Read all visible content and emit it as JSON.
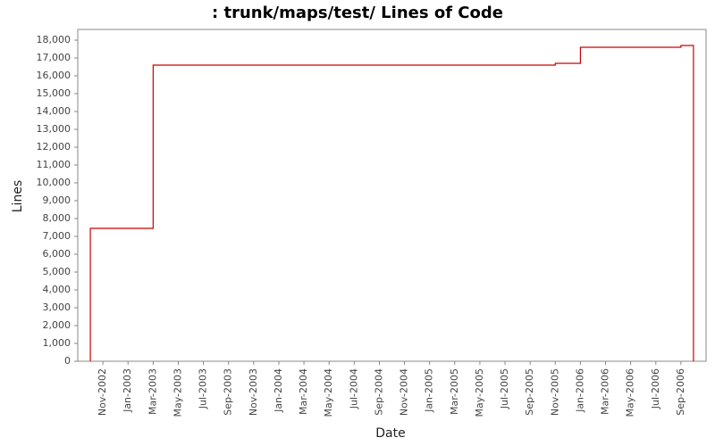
{
  "chart_data": {
    "type": "step",
    "title": ": trunk/maps/test/ Lines of Code",
    "x_label": "Date",
    "y_label": "Lines",
    "x": [
      "2002-10",
      "2002-10",
      "2003-03",
      "2005-11",
      "2006-01",
      "2006-01",
      "2006-09",
      "2006-09",
      "2006-10"
    ],
    "values": [
      0,
      7450,
      16600,
      16700,
      17300,
      17600,
      17650,
      17700,
      0
    ],
    "color": "#cc0000",
    "xlim": [
      "2002-09",
      "2006-11"
    ],
    "xticks": [
      {
        "value": "2002-11",
        "label": "Nov-2002"
      },
      {
        "value": "2003-01",
        "label": "Jan-2003"
      },
      {
        "value": "2003-03",
        "label": "Mar-2003"
      },
      {
        "value": "2003-05",
        "label": "May-2003"
      },
      {
        "value": "2003-07",
        "label": "Jul-2003"
      },
      {
        "value": "2003-09",
        "label": "Sep-2003"
      },
      {
        "value": "2003-11",
        "label": "Nov-2003"
      },
      {
        "value": "2004-01",
        "label": "Jan-2004"
      },
      {
        "value": "2004-03",
        "label": "Mar-2004"
      },
      {
        "value": "2004-05",
        "label": "May-2004"
      },
      {
        "value": "2004-07",
        "label": "Jul-2004"
      },
      {
        "value": "2004-09",
        "label": "Sep-2004"
      },
      {
        "value": "2004-11",
        "label": "Nov-2004"
      },
      {
        "value": "2005-01",
        "label": "Jan-2005"
      },
      {
        "value": "2005-03",
        "label": "Mar-2005"
      },
      {
        "value": "2005-05",
        "label": "May-2005"
      },
      {
        "value": "2005-07",
        "label": "Jul-2005"
      },
      {
        "value": "2005-09",
        "label": "Sep-2005"
      },
      {
        "value": "2005-11",
        "label": "Nov-2005"
      },
      {
        "value": "2006-01",
        "label": "Jan-2006"
      },
      {
        "value": "2006-03",
        "label": "Mar-2006"
      },
      {
        "value": "2006-05",
        "label": "May-2006"
      },
      {
        "value": "2006-07",
        "label": "Jul-2006"
      },
      {
        "value": "2006-09",
        "label": "Sep-2006"
      }
    ],
    "ylim": [
      0,
      18600
    ],
    "yticks": [
      0,
      {
        "value": 1000,
        "label": "1,000"
      },
      {
        "value": 2000,
        "label": "2,000"
      },
      {
        "value": 3000,
        "label": "3,000"
      },
      {
        "value": 4000,
        "label": "4,000"
      },
      {
        "value": 5000,
        "label": "5,000"
      },
      {
        "value": 6000,
        "label": "6,000"
      },
      {
        "value": 7000,
        "label": "7,000"
      },
      {
        "value": 8000,
        "label": "8,000"
      },
      {
        "value": 9000,
        "label": "9,000"
      },
      {
        "value": 10000,
        "label": "10,000"
      },
      {
        "value": 11000,
        "label": "11,000"
      },
      {
        "value": 12000,
        "label": "12,000"
      },
      {
        "value": 13000,
        "label": "13,000"
      },
      {
        "value": 14000,
        "label": "14,000"
      },
      {
        "value": 15000,
        "label": "15,000"
      },
      {
        "value": 16000,
        "label": "16,000"
      },
      {
        "value": 17000,
        "label": "17,000"
      },
      {
        "value": 18000,
        "label": "18,000"
      }
    ],
    "grid": false
  }
}
